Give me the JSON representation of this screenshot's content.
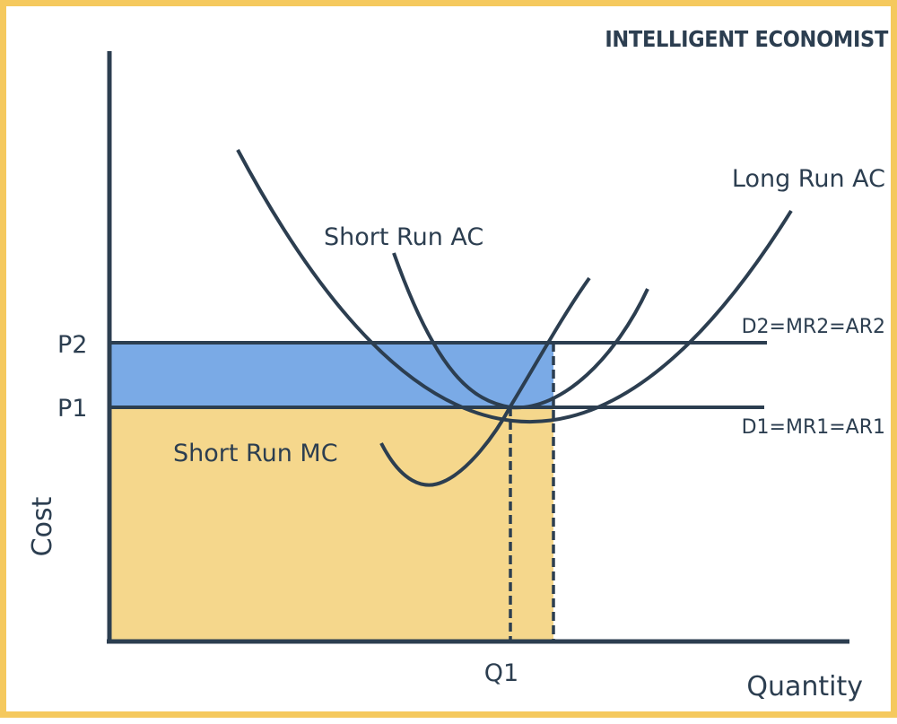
{
  "brand": "INTELLIGENT ECONOMIST",
  "axes": {
    "y_label": "Cost",
    "x_label": "Quantity",
    "price_ticks": [
      "P2",
      "P1"
    ],
    "quantity_ticks": [
      "Q1"
    ]
  },
  "curves": {
    "long_run_ac": "Long Run AC",
    "short_run_ac": "Short Run AC",
    "short_run_mc": "Short Run MC",
    "demand_high": "D2=MR2=AR2",
    "demand_low": "D1=MR1=AR1"
  },
  "colors": {
    "frame": "#f5c95e",
    "ink": "#2c3e50",
    "profit_area": "#7aaae6",
    "cost_area": "#f5d78c"
  }
}
